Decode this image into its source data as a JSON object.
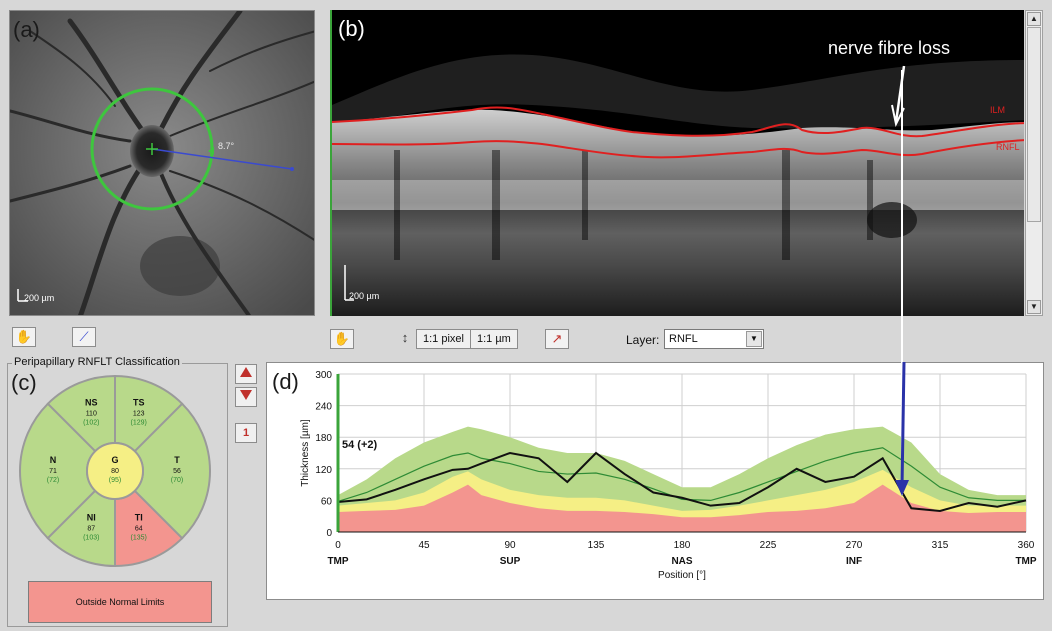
{
  "panels": {
    "a": {
      "label": "(a)",
      "scale": "200 µm",
      "angle": "8.7°"
    },
    "b": {
      "label": "(b)",
      "scale": "200 µm",
      "annotation": "nerve fibre loss",
      "layer_ilm": "ILM",
      "layer_rnfl": "RNFL"
    },
    "c": {
      "label": "(c)"
    },
    "d": {
      "label": "(d)"
    }
  },
  "toolbar": {
    "pixel_label": "1:1 pixel",
    "micron_label": "1:1 µm",
    "layer_label": "Layer:",
    "layer_value": "RNFL"
  },
  "classification": {
    "title": "Peripapillary RNFLT Classification",
    "sectors": {
      "NS": {
        "name": "NS",
        "value": "110",
        "normal": "(102)"
      },
      "TS": {
        "name": "TS",
        "value": "123",
        "normal": "(129)"
      },
      "N": {
        "name": "N",
        "value": "71",
        "normal": "(72)"
      },
      "G": {
        "name": "G",
        "value": "80",
        "normal": "(95)"
      },
      "T": {
        "name": "T",
        "value": "56",
        "normal": "(70)"
      },
      "NI": {
        "name": "NI",
        "value": "87",
        "normal": "(103)"
      },
      "TI": {
        "name": "TI",
        "value": "64",
        "normal": "(135)"
      }
    },
    "result": "Outside Normal Limits",
    "colors": {
      "normal": "#b8d98a",
      "borderline": "#f5ef85",
      "outside": "#f3958f"
    }
  },
  "page_num": "1",
  "chart_data": {
    "type": "line",
    "ylabel": "Thickness [µm]",
    "xlabel": "Position [°]",
    "annotation": "54 (+2)",
    "xlim": [
      0,
      360
    ],
    "ylim": [
      0,
      300
    ],
    "x_ticks": [
      "0",
      "45",
      "90",
      "135",
      "180",
      "225",
      "270",
      "315",
      "360"
    ],
    "y_ticks": [
      "0",
      "60",
      "120",
      "180",
      "240",
      "300"
    ],
    "x_region_labels": [
      {
        "x": 0,
        "label": "TMP"
      },
      {
        "x": 90,
        "label": "SUP"
      },
      {
        "x": 180,
        "label": "NAS"
      },
      {
        "x": 270,
        "label": "INF"
      },
      {
        "x": 360,
        "label": "TMP"
      }
    ],
    "x": [
      0,
      15,
      30,
      45,
      60,
      68,
      75,
      90,
      105,
      120,
      135,
      150,
      165,
      180,
      195,
      210,
      225,
      240,
      255,
      270,
      285,
      300,
      315,
      330,
      345,
      360
    ],
    "band_red": [
      38,
      40,
      42,
      50,
      75,
      90,
      70,
      55,
      45,
      40,
      40,
      38,
      34,
      28,
      28,
      32,
      38,
      40,
      45,
      55,
      90,
      55,
      40,
      36,
      38,
      38
    ],
    "band_yellow": [
      50,
      55,
      60,
      75,
      105,
      115,
      100,
      80,
      70,
      65,
      65,
      60,
      50,
      40,
      42,
      50,
      60,
      70,
      80,
      95,
      118,
      85,
      60,
      50,
      50,
      50
    ],
    "band_green": [
      70,
      100,
      140,
      170,
      190,
      200,
      195,
      180,
      160,
      150,
      150,
      135,
      110,
      85,
      85,
      110,
      140,
      165,
      185,
      195,
      200,
      170,
      110,
      80,
      70,
      70
    ],
    "mean": [
      58,
      75,
      100,
      125,
      145,
      150,
      140,
      130,
      115,
      110,
      112,
      100,
      82,
      62,
      60,
      75,
      95,
      115,
      135,
      150,
      160,
      125,
      85,
      65,
      60,
      60
    ],
    "patient": [
      57,
      62,
      80,
      100,
      118,
      120,
      130,
      150,
      140,
      95,
      150,
      110,
      75,
      65,
      50,
      55,
      85,
      120,
      95,
      105,
      140,
      45,
      40,
      55,
      48,
      60
    ],
    "colors": {
      "red": "#f3958f",
      "yellow": "#f5ef85",
      "green": "#b8d98a",
      "mean": "#2e8b35",
      "patient": "#111111"
    }
  }
}
